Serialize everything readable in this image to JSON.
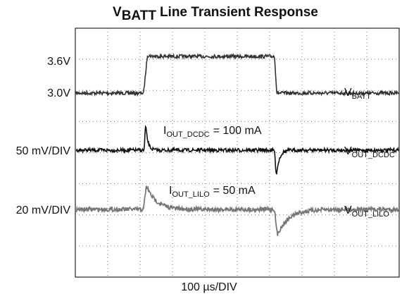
{
  "title": {
    "symbol": "V",
    "subscript": "BATT",
    "text": "Line Transient Response"
  },
  "left_labels": [
    "3.6V",
    "3.0V",
    "50 mV/DIV",
    "20 mV/DIV"
  ],
  "right_labels": [
    {
      "symbol": "V",
      "subscript": "BATT"
    },
    {
      "symbol": "V",
      "subscript": "OUT_DCDC"
    },
    {
      "symbol": "V",
      "subscript": "OUT_LILO"
    }
  ],
  "annotations": [
    {
      "symbol": "I",
      "subscript": "OUT_DCDC",
      "text": "= 100 mA"
    },
    {
      "symbol": "I",
      "subscript": "OUT_LILO",
      "text": "= 50 mA"
    }
  ],
  "x_label": "100 µs/DIV"
}
